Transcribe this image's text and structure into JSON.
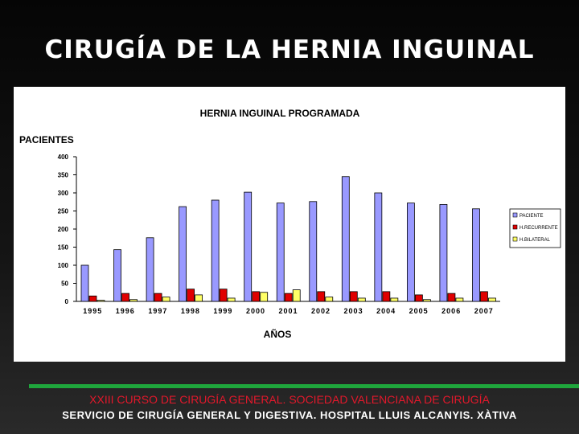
{
  "slide": {
    "title": "CIRUGÍA DE LA HERNIA INGUINAL",
    "footer_course": "XXIII CURSO DE CIRUGÍA GENERAL. SOCIEDAD VALENCIANA DE CIRUGÍA",
    "footer_service": "SERVICIO DE CIRUGÍA GENERAL Y DIGESTIVA. HOSPITAL LLUIS ALCANYIS. XÀTIVA"
  },
  "chart_data": {
    "type": "bar",
    "title": "HERNIA INGUINAL PROGRAMADA",
    "xlabel": "AÑOS",
    "ylabel": "PACIENTES",
    "ylim": [
      0,
      400
    ],
    "yticks": [
      0,
      50,
      100,
      150,
      200,
      250,
      300,
      350,
      400
    ],
    "grid": false,
    "legend_position": "right",
    "categories": [
      "1995",
      "1996",
      "1997",
      "1998",
      "1999",
      "2000",
      "2001",
      "2002",
      "2003",
      "2004",
      "2005",
      "2006",
      "2007"
    ],
    "series": [
      {
        "name": "PACIENTE",
        "color": "#9999ff",
        "values": [
          100,
          143,
          176,
          262,
          280,
          302,
          272,
          276,
          345,
          300,
          272,
          268,
          256
        ]
      },
      {
        "name": "H.RECURRENTE",
        "color": "#e00000",
        "values": [
          15,
          22,
          22,
          34,
          34,
          27,
          22,
          27,
          27,
          27,
          18,
          22,
          27
        ]
      },
      {
        "name": "H.BILATERAL",
        "color": "#ffff66",
        "values": [
          3,
          5,
          12,
          18,
          9,
          25,
          32,
          12,
          9,
          9,
          5,
          9,
          9
        ]
      }
    ]
  }
}
